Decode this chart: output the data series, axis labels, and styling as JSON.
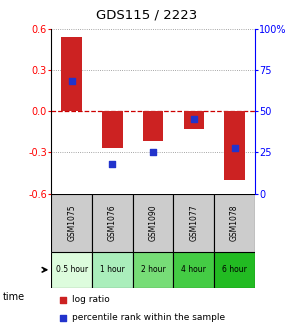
{
  "title": "GDS115 / 2223",
  "samples": [
    "GSM1075",
    "GSM1076",
    "GSM1090",
    "GSM1077",
    "GSM1078"
  ],
  "time_labels": [
    "0.5 hour",
    "1 hour",
    "2 hour",
    "4 hour",
    "6 hour"
  ],
  "time_colors": [
    "#ddfcdd",
    "#aaeebb",
    "#77dd77",
    "#44cc44",
    "#22bb22"
  ],
  "log_ratios": [
    0.54,
    -0.27,
    -0.22,
    -0.13,
    -0.5
  ],
  "percentile_ranks": [
    68,
    18,
    25,
    45,
    28
  ],
  "ylim": [
    -0.6,
    0.6
  ],
  "yticks_left": [
    -0.6,
    -0.3,
    0.0,
    0.3,
    0.6
  ],
  "yticks_right": [
    0,
    25,
    50,
    75,
    100
  ],
  "bar_color": "#cc2222",
  "dot_color": "#2233cc",
  "background_color": "#ffffff",
  "zero_line_color": "#cc0000",
  "grid_color": "#000000"
}
